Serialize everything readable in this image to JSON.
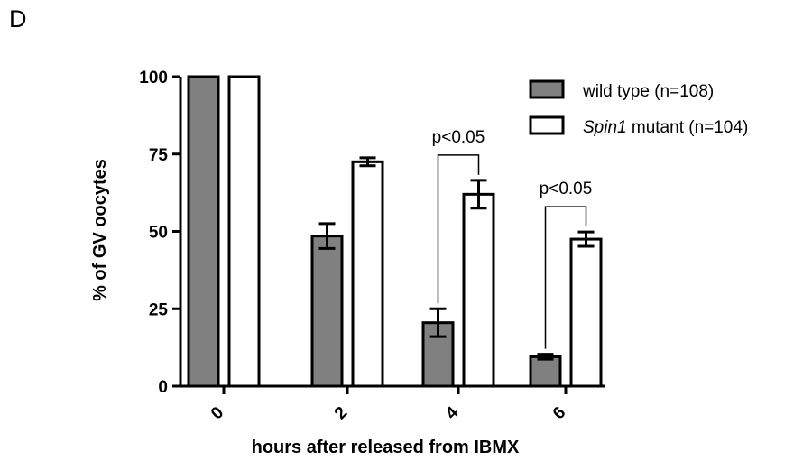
{
  "panel_label": "D",
  "chart_data": {
    "type": "bar",
    "title": "",
    "xlabel": "hours after released from IBMX",
    "ylabel": "% of GV oocytes",
    "categories": [
      "0",
      "2",
      "4",
      "6"
    ],
    "ylim": [
      0,
      100
    ],
    "yticks": [
      "0",
      "25",
      "50",
      "75",
      "100"
    ],
    "legend_position": "top-right",
    "series": [
      {
        "name": "wild type (n=108)",
        "name_italic": "",
        "name_rest": "wild type (n=108)",
        "color": "#808080",
        "values": [
          100,
          48.5,
          20.5,
          9.5
        ],
        "errors": [
          0,
          4,
          4.5,
          0.8
        ]
      },
      {
        "name": "Spin1 mutant (n=104)",
        "name_italic": "Spin1",
        "name_rest": " mutant (n=104)",
        "color": "#ffffff",
        "values": [
          100,
          72.5,
          62,
          47.5
        ],
        "errors": [
          0,
          1.3,
          4.5,
          2.3
        ]
      }
    ],
    "annotations": [
      {
        "text": "p<0.05",
        "category_index": 2
      },
      {
        "text": "p<0.05",
        "category_index": 3
      }
    ]
  }
}
